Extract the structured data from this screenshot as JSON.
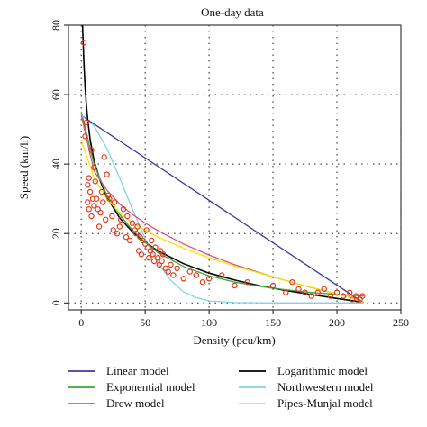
{
  "chart_data": {
    "type": "line",
    "title": "One-day data",
    "xlabel": "Density (pcu/km)",
    "ylabel": "Speed (km/h)",
    "xlim": [
      -10,
      250
    ],
    "ylim": [
      -2,
      80
    ],
    "xticks": [
      0,
      50,
      100,
      150,
      200,
      250
    ],
    "yticks": [
      0,
      20,
      40,
      60,
      80
    ],
    "grid": true,
    "legend_position": "bottom",
    "series": [
      {
        "name": "Linear model",
        "color": "#3b3b9b",
        "x": [
          0,
          221
        ],
        "y": [
          54,
          0
        ]
      },
      {
        "name": "Logarithmic model",
        "color": "#000000",
        "x": [
          1,
          2,
          3,
          4,
          5,
          7,
          10,
          15,
          20,
          30,
          40,
          50,
          60,
          80,
          100,
          120,
          140,
          160,
          180,
          200,
          215,
          221
        ],
        "y": [
          85,
          70,
          62,
          57,
          53,
          47,
          41,
          35,
          30.5,
          24.5,
          20.5,
          17.5,
          15,
          11.3,
          8.6,
          6.6,
          4.9,
          3.6,
          2.4,
          1.3,
          0.5,
          0
        ]
      },
      {
        "name": "Exponential model",
        "color": "#3aa63a",
        "x": [
          0,
          10,
          20,
          30,
          40,
          50,
          60,
          80,
          100,
          120,
          150,
          180,
          210,
          221
        ],
        "y": [
          55,
          40,
          31,
          25.5,
          21,
          17.5,
          14.5,
          10.5,
          7.8,
          6,
          4.2,
          3,
          2.2,
          2
        ]
      },
      {
        "name": "Northwestern model",
        "color": "#7fd3e8",
        "x": [
          0,
          10,
          20,
          30,
          40,
          50,
          60,
          70,
          80,
          90,
          100,
          120,
          150,
          221
        ],
        "y": [
          54,
          51,
          44.5,
          36,
          27,
          18.5,
          11.5,
          6.5,
          3.2,
          1.5,
          0.6,
          0.1,
          0,
          0
        ]
      },
      {
        "name": "Drew model",
        "color": "#e0507a",
        "x": [
          0,
          10,
          20,
          30,
          40,
          50,
          60,
          80,
          100,
          120,
          150,
          180,
          200,
          210,
          221
        ],
        "y": [
          54,
          38,
          32.5,
          28.5,
          25.5,
          23,
          20.8,
          17,
          13.8,
          11,
          7.5,
          4.4,
          2.6,
          1.6,
          0
        ]
      },
      {
        "name": "Pipes-Munjal model",
        "color": "#f2e600",
        "x": [
          0,
          10,
          20,
          30,
          40,
          50,
          60,
          80,
          100,
          120,
          150,
          180,
          200,
          210,
          221
        ],
        "y": [
          47,
          36,
          30,
          26,
          23,
          21,
          19,
          15.8,
          13,
          10.6,
          7.5,
          4.5,
          2.6,
          1.6,
          0
        ]
      }
    ],
    "observations": {
      "color": "#e23a1a",
      "x": [
        2,
        3,
        4,
        5,
        5,
        6,
        6,
        7,
        8,
        8,
        9,
        10,
        10,
        11,
        12,
        13,
        14,
        15,
        16,
        17,
        18,
        19,
        20,
        21,
        22,
        24,
        25,
        26,
        28,
        30,
        31,
        33,
        35,
        36,
        38,
        40,
        42,
        43,
        44,
        45,
        46,
        47,
        48,
        50,
        51,
        52,
        53,
        54,
        55,
        56,
        57,
        58,
        60,
        61,
        62,
        63,
        64,
        66,
        68,
        70,
        72,
        75,
        80,
        85,
        90,
        95,
        100,
        110,
        120,
        130,
        150,
        160,
        165,
        170,
        175,
        180,
        185,
        190,
        195,
        200,
        205,
        210,
        212,
        215,
        218,
        220
      ],
      "y": [
        75,
        48,
        52,
        34,
        29,
        36,
        27,
        32,
        44,
        25,
        30,
        39,
        28,
        35,
        30,
        27,
        22,
        26,
        32,
        29,
        42,
        24,
        37,
        31,
        30,
        25,
        21,
        29,
        20,
        22,
        24,
        27,
        19,
        25,
        18,
        23,
        21,
        20,
        22,
        15,
        19,
        14,
        18,
        17,
        21,
        16,
        13,
        15,
        18,
        14,
        12,
        16,
        13,
        11,
        15,
        12,
        14,
        10,
        9,
        11,
        8,
        10,
        7,
        9,
        8,
        6,
        7,
        8,
        5,
        6,
        5,
        3,
        6,
        4,
        3,
        2,
        3,
        4,
        2,
        3,
        2,
        3,
        1,
        2,
        1,
        2
      ]
    }
  }
}
